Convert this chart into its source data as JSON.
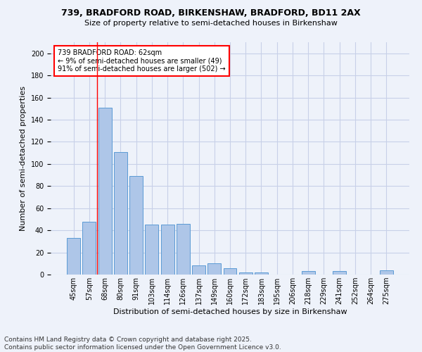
{
  "title_line1": "739, BRADFORD ROAD, BIRKENSHAW, BRADFORD, BD11 2AX",
  "title_line2": "Size of property relative to semi-detached houses in Birkenshaw",
  "xlabel": "Distribution of semi-detached houses by size in Birkenshaw",
  "ylabel": "Number of semi-detached properties",
  "categories": [
    "45sqm",
    "57sqm",
    "68sqm",
    "80sqm",
    "91sqm",
    "103sqm",
    "114sqm",
    "126sqm",
    "137sqm",
    "149sqm",
    "160sqm",
    "172sqm",
    "183sqm",
    "195sqm",
    "206sqm",
    "218sqm",
    "229sqm",
    "241sqm",
    "252sqm",
    "264sqm",
    "275sqm"
  ],
  "values": [
    33,
    48,
    151,
    111,
    89,
    45,
    45,
    46,
    8,
    10,
    6,
    2,
    2,
    0,
    0,
    3,
    0,
    3,
    0,
    0,
    4
  ],
  "bar_color": "#aec6e8",
  "bar_edge_color": "#5b9bd5",
  "red_line_x": 1,
  "annotation_text": "739 BRADFORD ROAD: 62sqm\n← 9% of semi-detached houses are smaller (49)\n91% of semi-detached houses are larger (502) →",
  "annotation_box_color": "white",
  "annotation_box_edge_color": "red",
  "footer_text": "Contains HM Land Registry data © Crown copyright and database right 2025.\nContains public sector information licensed under the Open Government Licence v3.0.",
  "ylim": [
    0,
    210
  ],
  "yticks": [
    0,
    20,
    40,
    60,
    80,
    100,
    120,
    140,
    160,
    180,
    200
  ],
  "bg_color": "#eef2fa",
  "grid_color": "#c8d0e8",
  "title_fontsize": 9,
  "subtitle_fontsize": 8,
  "axis_label_fontsize": 8,
  "tick_fontsize": 7,
  "annotation_fontsize": 7,
  "footer_fontsize": 6.5
}
